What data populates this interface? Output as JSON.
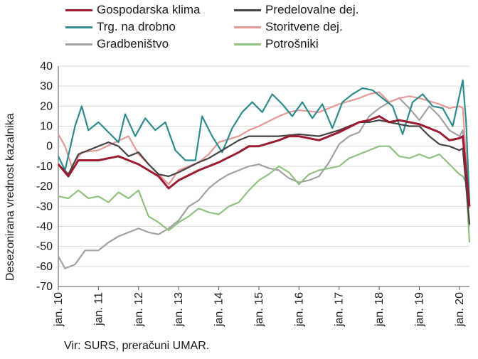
{
  "chart_data": {
    "type": "line",
    "title": "",
    "xlabel": "",
    "ylabel": "Desezonirana vrednost kazalnika",
    "ylim": [
      -70,
      40
    ],
    "yticks": [
      40,
      30,
      20,
      10,
      0,
      -10,
      -20,
      -30,
      -40,
      -50,
      -60,
      -70
    ],
    "xtick_labels": [
      "jan. 10",
      "jan. 11",
      "jan. 12",
      "jan. 13",
      "jan. 14",
      "jan. 15",
      "jan. 16",
      "jan. 17",
      "jan. 18",
      "jan. 19",
      "jan. 20"
    ],
    "x_start": "2010-01",
    "x_end": "2020-04",
    "grid": "horizontal",
    "legend_position": "top",
    "source": "Vir: SURS, preračuni UMAR.",
    "series": [
      {
        "name": "Gospodarska klima",
        "color": "#9b1b30",
        "points": [
          [
            "2010-01",
            -9
          ],
          [
            "2010-04",
            -15
          ],
          [
            "2010-07",
            -7
          ],
          [
            "2011-01",
            -7
          ],
          [
            "2011-07",
            -5
          ],
          [
            "2011-10",
            -7
          ],
          [
            "2012-01",
            -9
          ],
          [
            "2012-07",
            -15
          ],
          [
            "2012-10",
            -21
          ],
          [
            "2013-01",
            -17
          ],
          [
            "2013-07",
            -12
          ],
          [
            "2013-10",
            -10
          ],
          [
            "2014-01",
            -8
          ],
          [
            "2014-07",
            -3
          ],
          [
            "2014-10",
            0
          ],
          [
            "2015-01",
            0
          ],
          [
            "2015-07",
            3
          ],
          [
            "2015-10",
            5
          ],
          [
            "2016-01",
            5
          ],
          [
            "2016-07",
            3
          ],
          [
            "2017-01",
            7
          ],
          [
            "2017-07",
            12
          ],
          [
            "2017-10",
            13
          ],
          [
            "2018-01",
            15
          ],
          [
            "2018-04",
            12
          ],
          [
            "2018-07",
            13
          ],
          [
            "2018-10",
            12
          ],
          [
            "2019-01",
            11
          ],
          [
            "2019-07",
            7
          ],
          [
            "2019-10",
            3
          ],
          [
            "2020-01",
            4
          ],
          [
            "2020-02",
            5
          ],
          [
            "2020-04",
            -30
          ]
        ]
      },
      {
        "name": "Predelovalne dej.",
        "color": "#444444",
        "points": [
          [
            "2010-01",
            -9
          ],
          [
            "2010-04",
            -14
          ],
          [
            "2010-07",
            -4
          ],
          [
            "2011-01",
            0
          ],
          [
            "2011-04",
            2
          ],
          [
            "2011-07",
            0
          ],
          [
            "2011-10",
            -5
          ],
          [
            "2012-01",
            -3
          ],
          [
            "2012-04",
            -9
          ],
          [
            "2012-07",
            -14
          ],
          [
            "2012-10",
            -15
          ],
          [
            "2013-01",
            -13
          ],
          [
            "2013-07",
            -8
          ],
          [
            "2013-10",
            -6
          ],
          [
            "2014-01",
            -3
          ],
          [
            "2014-07",
            3
          ],
          [
            "2014-10",
            5
          ],
          [
            "2015-01",
            5
          ],
          [
            "2015-07",
            5
          ],
          [
            "2016-01",
            6
          ],
          [
            "2016-07",
            5
          ],
          [
            "2017-01",
            8
          ],
          [
            "2017-07",
            12
          ],
          [
            "2017-10",
            12
          ],
          [
            "2018-01",
            13
          ],
          [
            "2018-04",
            12
          ],
          [
            "2018-07",
            11
          ],
          [
            "2018-10",
            10
          ],
          [
            "2019-01",
            10
          ],
          [
            "2019-04",
            5
          ],
          [
            "2019-07",
            1
          ],
          [
            "2019-10",
            0
          ],
          [
            "2020-01",
            -2
          ],
          [
            "2020-02",
            -1
          ],
          [
            "2020-04",
            -39
          ]
        ]
      },
      {
        "name": "Trg. na drobno",
        "color": "#2e8b8b",
        "points": [
          [
            "2010-01",
            -5
          ],
          [
            "2010-03",
            -12
          ],
          [
            "2010-06",
            10
          ],
          [
            "2010-08",
            20
          ],
          [
            "2010-10",
            8
          ],
          [
            "2011-01",
            12
          ],
          [
            "2011-04",
            7
          ],
          [
            "2011-07",
            2
          ],
          [
            "2011-09",
            16
          ],
          [
            "2011-12",
            5
          ],
          [
            "2012-03",
            14
          ],
          [
            "2012-06",
            8
          ],
          [
            "2012-09",
            12
          ],
          [
            "2012-12",
            -2
          ],
          [
            "2013-03",
            -7
          ],
          [
            "2013-06",
            -7
          ],
          [
            "2013-08",
            15
          ],
          [
            "2013-11",
            5
          ],
          [
            "2014-02",
            -3
          ],
          [
            "2014-05",
            9
          ],
          [
            "2014-08",
            17
          ],
          [
            "2014-11",
            22
          ],
          [
            "2015-02",
            17
          ],
          [
            "2015-05",
            26
          ],
          [
            "2015-08",
            21
          ],
          [
            "2015-11",
            15
          ],
          [
            "2016-02",
            22
          ],
          [
            "2016-05",
            14
          ],
          [
            "2016-08",
            21
          ],
          [
            "2016-11",
            9
          ],
          [
            "2017-02",
            22
          ],
          [
            "2017-05",
            26
          ],
          [
            "2017-08",
            29
          ],
          [
            "2017-11",
            28
          ],
          [
            "2018-02",
            24
          ],
          [
            "2018-05",
            20
          ],
          [
            "2018-08",
            6
          ],
          [
            "2018-11",
            22
          ],
          [
            "2019-02",
            26
          ],
          [
            "2019-05",
            20
          ],
          [
            "2019-08",
            19
          ],
          [
            "2019-11",
            10
          ],
          [
            "2020-02",
            33
          ],
          [
            "2020-03",
            12
          ],
          [
            "2020-04",
            -28
          ]
        ]
      },
      {
        "name": "Storitvene dej.",
        "color": "#e59894",
        "points": [
          [
            "2010-01",
            6
          ],
          [
            "2010-03",
            0
          ],
          [
            "2010-05",
            -10
          ],
          [
            "2010-08",
            -3
          ],
          [
            "2011-01",
            -2
          ],
          [
            "2011-06",
            2
          ],
          [
            "2011-10",
            5
          ],
          [
            "2012-01",
            -4
          ],
          [
            "2012-04",
            -9
          ],
          [
            "2012-07",
            -14
          ],
          [
            "2012-10",
            -19
          ],
          [
            "2013-01",
            -12
          ],
          [
            "2013-07",
            -8
          ],
          [
            "2013-10",
            -4
          ],
          [
            "2014-01",
            2
          ],
          [
            "2014-07",
            5
          ],
          [
            "2014-10",
            8
          ],
          [
            "2015-01",
            10
          ],
          [
            "2015-07",
            15
          ],
          [
            "2015-10",
            17
          ],
          [
            "2016-01",
            18
          ],
          [
            "2016-07",
            17
          ],
          [
            "2017-01",
            21
          ],
          [
            "2017-07",
            24
          ],
          [
            "2017-10",
            26
          ],
          [
            "2018-01",
            27
          ],
          [
            "2018-04",
            22
          ],
          [
            "2018-07",
            24
          ],
          [
            "2018-10",
            25
          ],
          [
            "2019-01",
            24
          ],
          [
            "2019-07",
            21
          ],
          [
            "2019-10",
            19
          ],
          [
            "2020-01",
            20
          ],
          [
            "2020-02",
            19
          ],
          [
            "2020-04",
            -31
          ]
        ]
      },
      {
        "name": "Gradbeništvo",
        "color": "#a2a2a2",
        "points": [
          [
            "2010-01",
            -55
          ],
          [
            "2010-03",
            -61
          ],
          [
            "2010-06",
            -59
          ],
          [
            "2010-09",
            -52
          ],
          [
            "2011-01",
            -52
          ],
          [
            "2011-04",
            -48
          ],
          [
            "2011-07",
            -45
          ],
          [
            "2011-10",
            -43
          ],
          [
            "2012-01",
            -41
          ],
          [
            "2012-04",
            -43
          ],
          [
            "2012-07",
            -44
          ],
          [
            "2012-10",
            -41
          ],
          [
            "2013-01",
            -37
          ],
          [
            "2013-04",
            -30
          ],
          [
            "2013-07",
            -27
          ],
          [
            "2013-10",
            -21
          ],
          [
            "2014-01",
            -17
          ],
          [
            "2014-04",
            -14
          ],
          [
            "2014-07",
            -12
          ],
          [
            "2014-10",
            -10
          ],
          [
            "2015-01",
            -9
          ],
          [
            "2015-04",
            -11
          ],
          [
            "2015-07",
            -12
          ],
          [
            "2015-10",
            -16
          ],
          [
            "2016-01",
            -18
          ],
          [
            "2016-04",
            -17
          ],
          [
            "2016-07",
            -15
          ],
          [
            "2016-10",
            -8
          ],
          [
            "2017-01",
            1
          ],
          [
            "2017-04",
            5
          ],
          [
            "2017-07",
            7
          ],
          [
            "2017-10",
            15
          ],
          [
            "2018-01",
            19
          ],
          [
            "2018-04",
            22
          ],
          [
            "2018-07",
            24
          ],
          [
            "2018-10",
            19
          ],
          [
            "2019-01",
            13
          ],
          [
            "2019-04",
            20
          ],
          [
            "2019-07",
            15
          ],
          [
            "2019-10",
            8
          ],
          [
            "2020-01",
            5
          ],
          [
            "2020-02",
            8
          ],
          [
            "2020-04",
            -40
          ]
        ]
      },
      {
        "name": "Potrošniki",
        "color": "#8fc27f",
        "points": [
          [
            "2010-01",
            -25
          ],
          [
            "2010-04",
            -26
          ],
          [
            "2010-07",
            -22
          ],
          [
            "2010-10",
            -26
          ],
          [
            "2011-01",
            -25
          ],
          [
            "2011-04",
            -28
          ],
          [
            "2011-07",
            -23
          ],
          [
            "2011-10",
            -26
          ],
          [
            "2012-01",
            -22
          ],
          [
            "2012-04",
            -35
          ],
          [
            "2012-07",
            -38
          ],
          [
            "2012-10",
            -42
          ],
          [
            "2013-01",
            -38
          ],
          [
            "2013-04",
            -35
          ],
          [
            "2013-07",
            -31
          ],
          [
            "2013-10",
            -33
          ],
          [
            "2014-01",
            -34
          ],
          [
            "2014-04",
            -30
          ],
          [
            "2014-07",
            -28
          ],
          [
            "2014-10",
            -22
          ],
          [
            "2015-01",
            -17
          ],
          [
            "2015-04",
            -14
          ],
          [
            "2015-07",
            -10
          ],
          [
            "2015-10",
            -13
          ],
          [
            "2016-01",
            -19
          ],
          [
            "2016-04",
            -14
          ],
          [
            "2016-07",
            -12
          ],
          [
            "2016-10",
            -11
          ],
          [
            "2017-01",
            -10
          ],
          [
            "2017-04",
            -6
          ],
          [
            "2017-07",
            -4
          ],
          [
            "2017-10",
            -2
          ],
          [
            "2018-01",
            0
          ],
          [
            "2018-04",
            0
          ],
          [
            "2018-07",
            -5
          ],
          [
            "2018-10",
            -6
          ],
          [
            "2019-01",
            -4
          ],
          [
            "2019-04",
            -6
          ],
          [
            "2019-07",
            -4
          ],
          [
            "2019-10",
            -9
          ],
          [
            "2020-01",
            -14
          ],
          [
            "2020-02",
            -15
          ],
          [
            "2020-03",
            -18
          ],
          [
            "2020-04",
            -48
          ]
        ]
      }
    ]
  }
}
